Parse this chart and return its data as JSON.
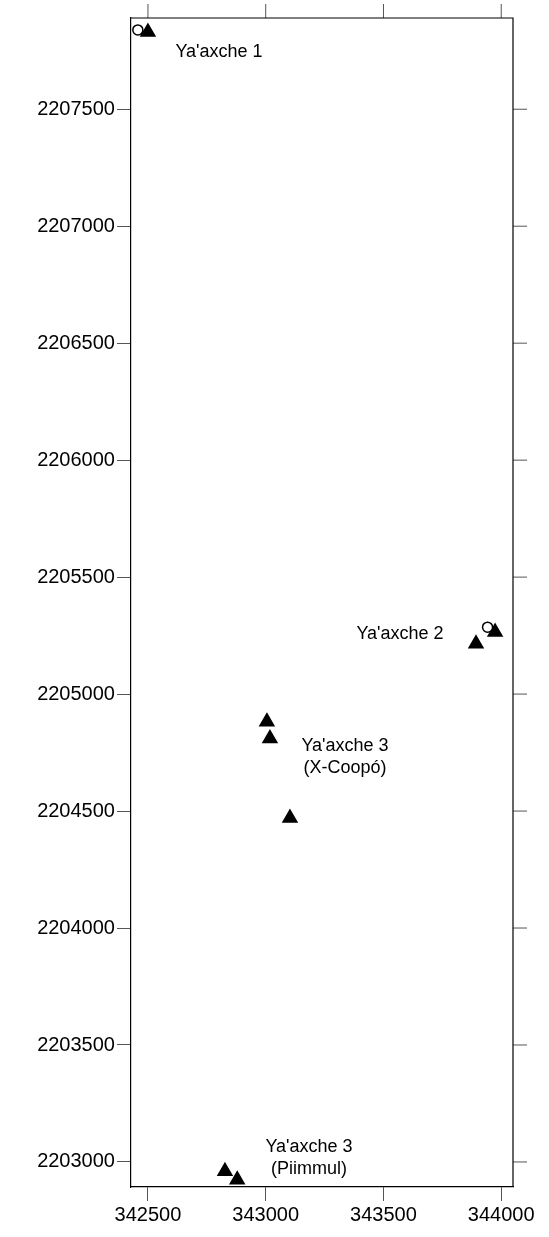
{
  "chart_data": {
    "type": "scatter",
    "xlim": [
      342428,
      344050
    ],
    "ylim": [
      2202893,
      2207890
    ],
    "xticks": [
      342500,
      343000,
      343500,
      344000
    ],
    "yticks": [
      2203000,
      2203500,
      2204000,
      2204500,
      2205000,
      2205500,
      2206000,
      2206500,
      2207000,
      2207500
    ],
    "grid": false,
    "legend": false,
    "series": [
      {
        "marker": "circle",
        "color": "#000000",
        "x": [
          342457,
          343942
        ],
        "values": [
          2207839,
          2205286
        ]
      },
      {
        "marker": "triangle",
        "color": "#000000",
        "x": [
          342500,
          343974,
          343893,
          343005,
          343018,
          343103,
          342827,
          342879
        ],
        "values": [
          2207830,
          2205265,
          2205215,
          2204882,
          2204810,
          2204470,
          2202960,
          2202924
        ]
      }
    ],
    "annotations": [
      "Ya'axche 1",
      "Ya'axche 2",
      "Ya'axche 3\n(X-Coopó)",
      "Ya'axche 3\n(Piimmul)"
    ]
  }
}
